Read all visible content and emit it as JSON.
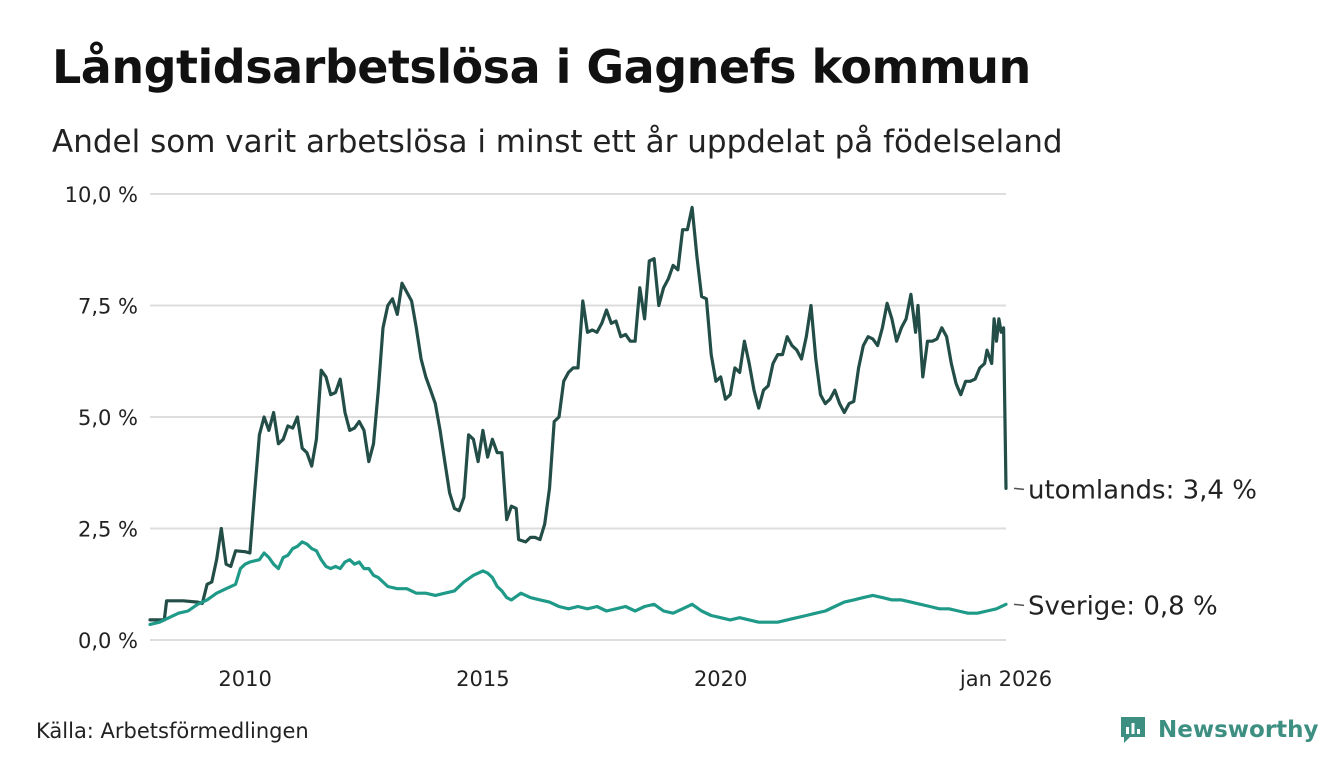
{
  "title": "Långtidsarbetslösa i Gagnefs kommun",
  "subtitle": "Andel som varit arbetslösa i minst ett år uppdelat på födelseland",
  "source": "Källa: Arbetsförmedlingen",
  "brand": "Newsworthy",
  "colors": {
    "utomlands": "#234d47",
    "sverige": "#1f9a88",
    "grid": "#dddddd",
    "brand": "#3d8f82"
  },
  "chart_data": {
    "type": "line",
    "title": "Långtidsarbetslösa i Gagnefs kommun",
    "ylim": [
      0,
      10
    ],
    "y_ticks": [
      {
        "value": 0,
        "label": "0,0 %"
      },
      {
        "value": 2.5,
        "label": "2,5 %"
      },
      {
        "value": 5,
        "label": "5,0 %"
      },
      {
        "value": 7.5,
        "label": "7,5 %"
      },
      {
        "value": 10,
        "label": "10,0 %"
      }
    ],
    "xlim": [
      2008.0,
      2026.0
    ],
    "x_ticks": [
      {
        "value": 2010,
        "label": "2010"
      },
      {
        "value": 2015,
        "label": "2015"
      },
      {
        "value": 2020,
        "label": "2020"
      },
      {
        "value": 2026.0,
        "label": "jan 2026"
      }
    ],
    "series": [
      {
        "name": "utomlands",
        "end_label": "utomlands: 3,4 %",
        "points": [
          [
            2008.0,
            0.45
          ],
          [
            2008.3,
            0.45
          ],
          [
            2008.35,
            0.88
          ],
          [
            2008.7,
            0.88
          ],
          [
            2009.0,
            0.85
          ],
          [
            2009.1,
            0.82
          ],
          [
            2009.2,
            1.25
          ],
          [
            2009.3,
            1.3
          ],
          [
            2009.4,
            1.8
          ],
          [
            2009.5,
            2.5
          ],
          [
            2009.6,
            1.7
          ],
          [
            2009.7,
            1.65
          ],
          [
            2009.8,
            2.0
          ],
          [
            2010.0,
            1.98
          ],
          [
            2010.1,
            1.95
          ],
          [
            2010.2,
            3.3
          ],
          [
            2010.3,
            4.6
          ],
          [
            2010.4,
            5.0
          ],
          [
            2010.5,
            4.7
          ],
          [
            2010.6,
            5.1
          ],
          [
            2010.7,
            4.4
          ],
          [
            2010.8,
            4.5
          ],
          [
            2010.9,
            4.8
          ],
          [
            2011.0,
            4.75
          ],
          [
            2011.1,
            5.0
          ],
          [
            2011.2,
            4.3
          ],
          [
            2011.3,
            4.2
          ],
          [
            2011.4,
            3.9
          ],
          [
            2011.5,
            4.5
          ],
          [
            2011.6,
            6.05
          ],
          [
            2011.7,
            5.9
          ],
          [
            2011.8,
            5.5
          ],
          [
            2011.9,
            5.55
          ],
          [
            2012.0,
            5.85
          ],
          [
            2012.1,
            5.1
          ],
          [
            2012.2,
            4.7
          ],
          [
            2012.3,
            4.75
          ],
          [
            2012.4,
            4.9
          ],
          [
            2012.5,
            4.7
          ],
          [
            2012.6,
            4.0
          ],
          [
            2012.7,
            4.4
          ],
          [
            2012.8,
            5.6
          ],
          [
            2012.9,
            7.0
          ],
          [
            2013.0,
            7.5
          ],
          [
            2013.1,
            7.65
          ],
          [
            2013.2,
            7.3
          ],
          [
            2013.3,
            8.0
          ],
          [
            2013.4,
            7.8
          ],
          [
            2013.5,
            7.6
          ],
          [
            2013.6,
            7.0
          ],
          [
            2013.7,
            6.3
          ],
          [
            2013.8,
            5.9
          ],
          [
            2013.9,
            5.6
          ],
          [
            2014.0,
            5.3
          ],
          [
            2014.1,
            4.7
          ],
          [
            2014.2,
            4.0
          ],
          [
            2014.3,
            3.3
          ],
          [
            2014.4,
            2.95
          ],
          [
            2014.5,
            2.9
          ],
          [
            2014.6,
            3.2
          ],
          [
            2014.7,
            4.6
          ],
          [
            2014.8,
            4.5
          ],
          [
            2014.9,
            4.0
          ],
          [
            2015.0,
            4.7
          ],
          [
            2015.1,
            4.1
          ],
          [
            2015.2,
            4.5
          ],
          [
            2015.3,
            4.2
          ],
          [
            2015.4,
            4.2
          ],
          [
            2015.5,
            2.7
          ],
          [
            2015.6,
            3.0
          ],
          [
            2015.7,
            2.95
          ],
          [
            2015.75,
            2.25
          ],
          [
            2015.9,
            2.2
          ],
          [
            2016.0,
            2.3
          ],
          [
            2016.1,
            2.3
          ],
          [
            2016.2,
            2.25
          ],
          [
            2016.3,
            2.6
          ],
          [
            2016.4,
            3.4
          ],
          [
            2016.5,
            4.9
          ],
          [
            2016.6,
            5.0
          ],
          [
            2016.7,
            5.8
          ],
          [
            2016.8,
            6.0
          ],
          [
            2016.9,
            6.1
          ],
          [
            2017.0,
            6.1
          ],
          [
            2017.1,
            7.6
          ],
          [
            2017.2,
            6.9
          ],
          [
            2017.3,
            6.95
          ],
          [
            2017.4,
            6.9
          ],
          [
            2017.5,
            7.1
          ],
          [
            2017.6,
            7.4
          ],
          [
            2017.7,
            7.1
          ],
          [
            2017.8,
            7.15
          ],
          [
            2017.9,
            6.8
          ],
          [
            2018.0,
            6.85
          ],
          [
            2018.1,
            6.7
          ],
          [
            2018.2,
            6.7
          ],
          [
            2018.3,
            7.9
          ],
          [
            2018.4,
            7.2
          ],
          [
            2018.5,
            8.5
          ],
          [
            2018.6,
            8.55
          ],
          [
            2018.7,
            7.5
          ],
          [
            2018.8,
            7.9
          ],
          [
            2018.9,
            8.1
          ],
          [
            2019.0,
            8.4
          ],
          [
            2019.1,
            8.3
          ],
          [
            2019.2,
            9.2
          ],
          [
            2019.3,
            9.2
          ],
          [
            2019.4,
            9.7
          ],
          [
            2019.5,
            8.6
          ],
          [
            2019.6,
            7.7
          ],
          [
            2019.7,
            7.65
          ],
          [
            2019.8,
            6.4
          ],
          [
            2019.9,
            5.8
          ],
          [
            2020.0,
            5.9
          ],
          [
            2020.1,
            5.4
          ],
          [
            2020.2,
            5.5
          ],
          [
            2020.3,
            6.1
          ],
          [
            2020.4,
            6.0
          ],
          [
            2020.5,
            6.7
          ],
          [
            2020.6,
            6.2
          ],
          [
            2020.7,
            5.6
          ],
          [
            2020.8,
            5.2
          ],
          [
            2020.9,
            5.6
          ],
          [
            2021.0,
            5.7
          ],
          [
            2021.1,
            6.2
          ],
          [
            2021.2,
            6.4
          ],
          [
            2021.3,
            6.4
          ],
          [
            2021.4,
            6.8
          ],
          [
            2021.5,
            6.6
          ],
          [
            2021.6,
            6.5
          ],
          [
            2021.7,
            6.3
          ],
          [
            2021.8,
            6.8
          ],
          [
            2021.9,
            7.5
          ],
          [
            2022.0,
            6.3
          ],
          [
            2022.1,
            5.5
          ],
          [
            2022.2,
            5.3
          ],
          [
            2022.3,
            5.4
          ],
          [
            2022.4,
            5.6
          ],
          [
            2022.5,
            5.3
          ],
          [
            2022.6,
            5.1
          ],
          [
            2022.7,
            5.3
          ],
          [
            2022.8,
            5.35
          ],
          [
            2022.9,
            6.1
          ],
          [
            2023.0,
            6.6
          ],
          [
            2023.1,
            6.8
          ],
          [
            2023.2,
            6.75
          ],
          [
            2023.3,
            6.6
          ],
          [
            2023.4,
            7.0
          ],
          [
            2023.5,
            7.55
          ],
          [
            2023.6,
            7.2
          ],
          [
            2023.7,
            6.7
          ],
          [
            2023.8,
            7.0
          ],
          [
            2023.9,
            7.2
          ],
          [
            2024.0,
            7.75
          ],
          [
            2024.1,
            6.9
          ],
          [
            2024.15,
            7.5
          ],
          [
            2024.25,
            5.9
          ],
          [
            2024.35,
            6.7
          ],
          [
            2024.45,
            6.7
          ],
          [
            2024.55,
            6.75
          ],
          [
            2024.65,
            7.0
          ],
          [
            2024.75,
            6.8
          ],
          [
            2024.85,
            6.2
          ],
          [
            2024.95,
            5.75
          ],
          [
            2025.05,
            5.5
          ],
          [
            2025.15,
            5.8
          ],
          [
            2025.25,
            5.8
          ],
          [
            2025.35,
            5.85
          ],
          [
            2025.45,
            6.1
          ],
          [
            2025.55,
            6.2
          ],
          [
            2025.6,
            6.5
          ],
          [
            2025.7,
            6.2
          ],
          [
            2025.75,
            7.2
          ],
          [
            2025.8,
            6.7
          ],
          [
            2025.85,
            7.2
          ],
          [
            2025.9,
            6.9
          ],
          [
            2025.95,
            7.0
          ],
          [
            2026.0,
            3.4
          ]
        ]
      },
      {
        "name": "sverige",
        "end_label": "Sverige: 0,8 %",
        "points": [
          [
            2008.0,
            0.35
          ],
          [
            2008.2,
            0.4
          ],
          [
            2008.4,
            0.5
          ],
          [
            2008.6,
            0.6
          ],
          [
            2008.8,
            0.65
          ],
          [
            2009.0,
            0.8
          ],
          [
            2009.2,
            0.9
          ],
          [
            2009.4,
            1.05
          ],
          [
            2009.6,
            1.15
          ],
          [
            2009.8,
            1.25
          ],
          [
            2009.9,
            1.6
          ],
          [
            2010.0,
            1.7
          ],
          [
            2010.1,
            1.75
          ],
          [
            2010.3,
            1.8
          ],
          [
            2010.4,
            1.95
          ],
          [
            2010.5,
            1.85
          ],
          [
            2010.6,
            1.7
          ],
          [
            2010.7,
            1.6
          ],
          [
            2010.8,
            1.85
          ],
          [
            2010.9,
            1.9
          ],
          [
            2011.0,
            2.05
          ],
          [
            2011.1,
            2.1
          ],
          [
            2011.2,
            2.2
          ],
          [
            2011.3,
            2.15
          ],
          [
            2011.4,
            2.05
          ],
          [
            2011.5,
            2.0
          ],
          [
            2011.6,
            1.8
          ],
          [
            2011.7,
            1.65
          ],
          [
            2011.8,
            1.6
          ],
          [
            2011.9,
            1.65
          ],
          [
            2012.0,
            1.6
          ],
          [
            2012.1,
            1.75
          ],
          [
            2012.2,
            1.8
          ],
          [
            2012.3,
            1.7
          ],
          [
            2012.4,
            1.75
          ],
          [
            2012.5,
            1.6
          ],
          [
            2012.6,
            1.6
          ],
          [
            2012.7,
            1.45
          ],
          [
            2012.8,
            1.4
          ],
          [
            2012.9,
            1.3
          ],
          [
            2013.0,
            1.2
          ],
          [
            2013.2,
            1.15
          ],
          [
            2013.4,
            1.15
          ],
          [
            2013.6,
            1.05
          ],
          [
            2013.8,
            1.05
          ],
          [
            2014.0,
            1.0
          ],
          [
            2014.2,
            1.05
          ],
          [
            2014.4,
            1.1
          ],
          [
            2014.6,
            1.3
          ],
          [
            2014.8,
            1.45
          ],
          [
            2015.0,
            1.55
          ],
          [
            2015.1,
            1.5
          ],
          [
            2015.2,
            1.4
          ],
          [
            2015.3,
            1.2
          ],
          [
            2015.4,
            1.1
          ],
          [
            2015.5,
            0.95
          ],
          [
            2015.6,
            0.9
          ],
          [
            2015.8,
            1.05
          ],
          [
            2016.0,
            0.95
          ],
          [
            2016.2,
            0.9
          ],
          [
            2016.4,
            0.85
          ],
          [
            2016.6,
            0.75
          ],
          [
            2016.8,
            0.7
          ],
          [
            2017.0,
            0.75
          ],
          [
            2017.2,
            0.7
          ],
          [
            2017.4,
            0.75
          ],
          [
            2017.6,
            0.65
          ],
          [
            2017.8,
            0.7
          ],
          [
            2018.0,
            0.75
          ],
          [
            2018.2,
            0.65
          ],
          [
            2018.4,
            0.75
          ],
          [
            2018.6,
            0.8
          ],
          [
            2018.8,
            0.65
          ],
          [
            2019.0,
            0.6
          ],
          [
            2019.2,
            0.7
          ],
          [
            2019.4,
            0.8
          ],
          [
            2019.6,
            0.65
          ],
          [
            2019.8,
            0.55
          ],
          [
            2020.0,
            0.5
          ],
          [
            2020.2,
            0.45
          ],
          [
            2020.4,
            0.5
          ],
          [
            2020.6,
            0.45
          ],
          [
            2020.8,
            0.4
          ],
          [
            2021.0,
            0.4
          ],
          [
            2021.2,
            0.4
          ],
          [
            2021.4,
            0.45
          ],
          [
            2021.6,
            0.5
          ],
          [
            2021.8,
            0.55
          ],
          [
            2022.0,
            0.6
          ],
          [
            2022.2,
            0.65
          ],
          [
            2022.4,
            0.75
          ],
          [
            2022.6,
            0.85
          ],
          [
            2022.8,
            0.9
          ],
          [
            2023.0,
            0.95
          ],
          [
            2023.2,
            1.0
          ],
          [
            2023.4,
            0.95
          ],
          [
            2023.6,
            0.9
          ],
          [
            2023.8,
            0.9
          ],
          [
            2024.0,
            0.85
          ],
          [
            2024.2,
            0.8
          ],
          [
            2024.4,
            0.75
          ],
          [
            2024.6,
            0.7
          ],
          [
            2024.8,
            0.7
          ],
          [
            2025.0,
            0.65
          ],
          [
            2025.2,
            0.6
          ],
          [
            2025.4,
            0.6
          ],
          [
            2025.6,
            0.65
          ],
          [
            2025.8,
            0.7
          ],
          [
            2026.0,
            0.8
          ]
        ]
      }
    ]
  }
}
